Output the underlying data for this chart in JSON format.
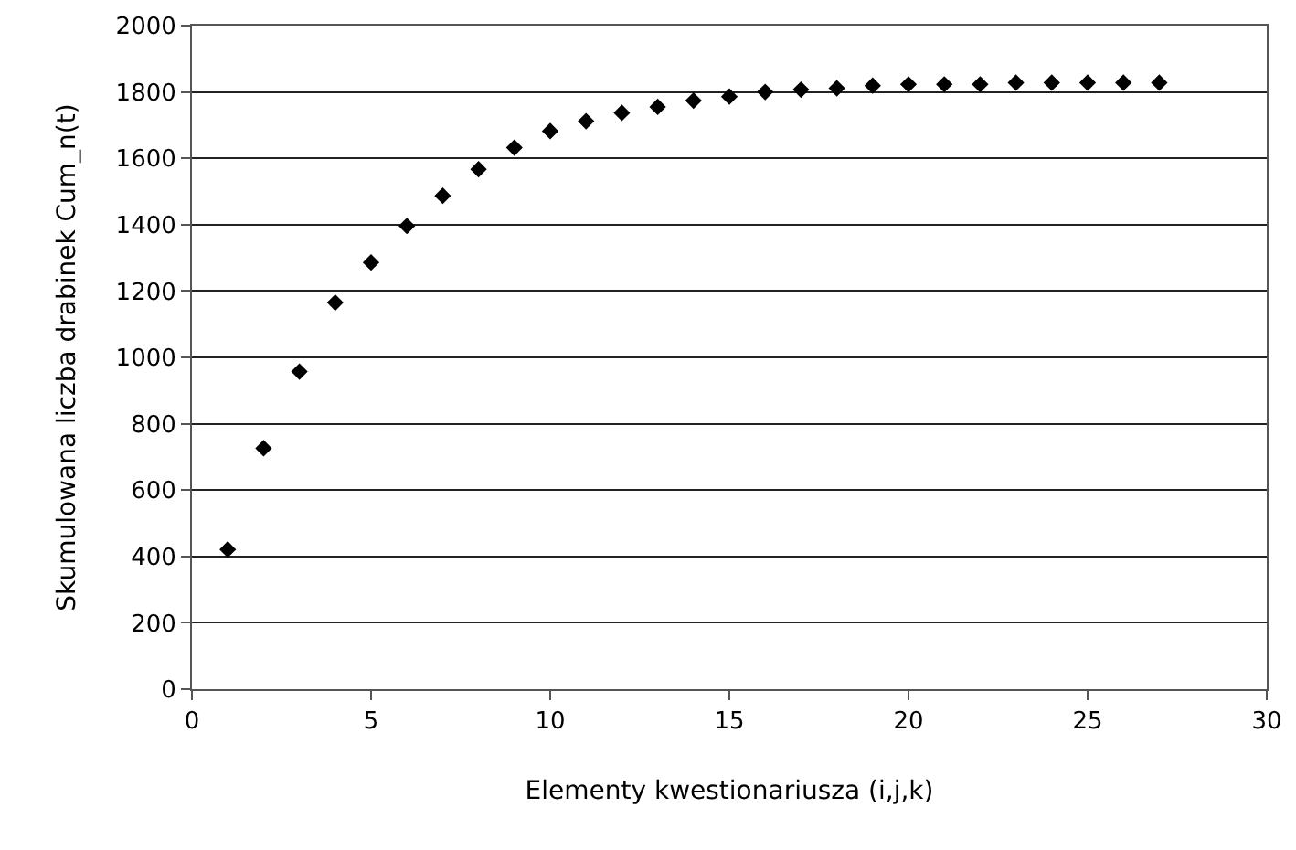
{
  "chart_data": {
    "type": "scatter",
    "xlabel": "Elementy kwestionariusza (i,j,k)",
    "ylabel": "Skumulowana liczba drabinek Cum_n(t)",
    "x": [
      1,
      2,
      3,
      4,
      5,
      6,
      7,
      8,
      9,
      10,
      11,
      12,
      13,
      14,
      15,
      16,
      17,
      18,
      19,
      20,
      21,
      22,
      23,
      24,
      25,
      26,
      27
    ],
    "series": [
      {
        "color": "#000000",
        "values": [
          421,
          726,
          957,
          1165,
          1286,
          1396,
          1487,
          1567,
          1632,
          1682,
          1712,
          1737,
          1755,
          1774,
          1786,
          1800,
          1807,
          1811,
          1819,
          1823,
          1823,
          1823,
          1828,
          1828,
          1828,
          1828,
          1828
        ]
      }
    ],
    "xlim": [
      0,
      30
    ],
    "xticks": [
      0,
      5,
      10,
      15,
      20,
      25,
      30
    ],
    "ylim": [
      0,
      2000
    ],
    "yticks": [
      0,
      200,
      400,
      600,
      800,
      1000,
      1200,
      1400,
      1600,
      1800,
      2000
    ],
    "grid": "y",
    "marker": "diamond"
  }
}
